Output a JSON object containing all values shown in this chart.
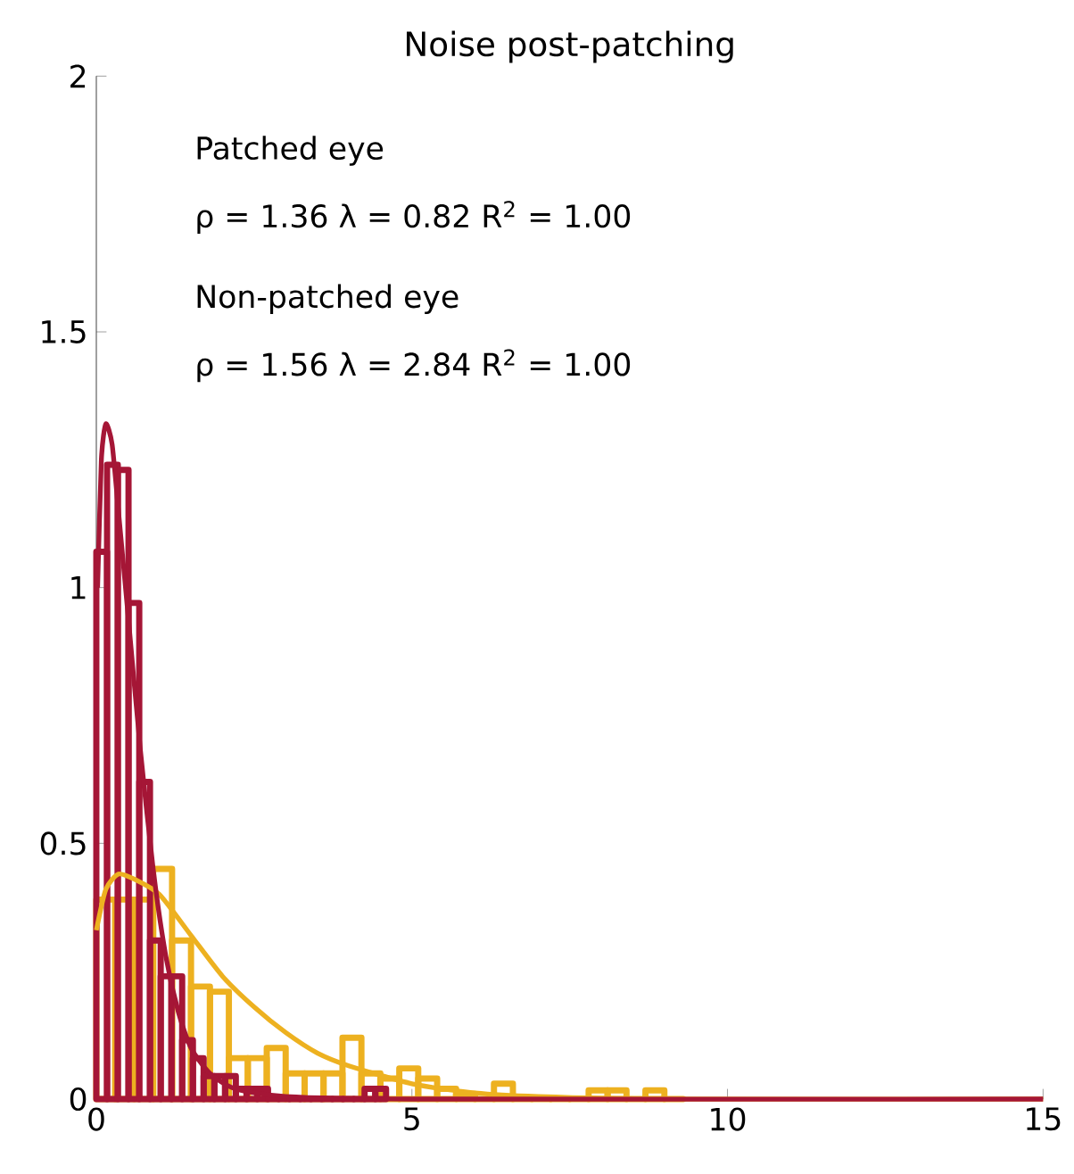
{
  "chart_data": {
    "type": "histogram",
    "title": "Noise post-patching",
    "xlim": [
      0,
      15
    ],
    "xticks": [
      0,
      5,
      10,
      15
    ],
    "ylim": [
      0,
      2
    ],
    "yticks": [
      0,
      0.5,
      1,
      1.5,
      2
    ],
    "series": [
      {
        "color": "#edb120",
        "bins": [
          0,
          0.3,
          0.6,
          0.9,
          1.2,
          1.5,
          1.8,
          2.1,
          2.4,
          2.7,
          3.0,
          3.3,
          3.6,
          3.9,
          4.2,
          4.5,
          4.8,
          5.1,
          5.4,
          5.7,
          6.0,
          6.3,
          6.6,
          6.9,
          7.2,
          7.5,
          7.8,
          8.1,
          8.4,
          8.7,
          9.0,
          9.3
        ],
        "values": [
          0.39,
          0.39,
          0.39,
          0.45,
          0.31,
          0.22,
          0.21,
          0.08,
          0.08,
          0.1,
          0.05,
          0.05,
          0.05,
          0.12,
          0.05,
          0.04,
          0.06,
          0.04,
          0.02,
          0.01,
          0,
          0.03,
          0,
          0,
          0,
          0,
          0.017,
          0.017,
          0,
          0.017,
          0
        ]
      },
      {
        "color": "#a51636",
        "bins": [
          0,
          0.17,
          0.34,
          0.51,
          0.68,
          0.85,
          1.02,
          1.19,
          1.36,
          1.53,
          1.7,
          1.87,
          2.04,
          2.21,
          2.38,
          2.55,
          2.72,
          2.89,
          3.06,
          3.23,
          3.4,
          3.57,
          3.74,
          3.91,
          4.08,
          4.25,
          4.42,
          4.59
        ],
        "values": [
          1.07,
          1.24,
          1.23,
          0.97,
          0.62,
          0.31,
          0.24,
          0.24,
          0.115,
          0.08,
          0.045,
          0.045,
          0.045,
          0.02,
          0.02,
          0.02,
          0,
          0,
          0,
          0,
          0,
          0,
          0,
          0,
          0,
          0.02,
          0.02
        ]
      },
      {
        "type": "line",
        "color": "#edb120",
        "x": [
          0,
          0.15,
          0.35,
          0.6,
          1,
          1.5,
          2,
          2.5,
          3,
          3.5,
          4,
          5,
          6,
          7,
          9,
          15
        ],
        "values": [
          0.33,
          0.41,
          0.44,
          0.43,
          0.4,
          0.32,
          0.24,
          0.18,
          0.13,
          0.09,
          0.065,
          0.03,
          0.012,
          0.005,
          0,
          0
        ]
      },
      {
        "type": "line",
        "color": "#a51636",
        "x": [
          0.02,
          0.08,
          0.15,
          0.25,
          0.35,
          0.5,
          0.7,
          0.9,
          1.1,
          1.3,
          1.5,
          1.8,
          2.2,
          3,
          5,
          15
        ],
        "values": [
          1.0,
          1.25,
          1.32,
          1.28,
          1.15,
          0.95,
          0.68,
          0.45,
          0.28,
          0.17,
          0.1,
          0.05,
          0.02,
          0.005,
          0,
          0
        ]
      }
    ],
    "annotations": [
      "Patched eye",
      "ρ = 1.36 λ = 0.82 R$^{2}$ = 1.00",
      "Non-patched eye",
      "ρ = 1.56 λ = 2.84 R$^{2}$ = 1.00"
    ]
  }
}
